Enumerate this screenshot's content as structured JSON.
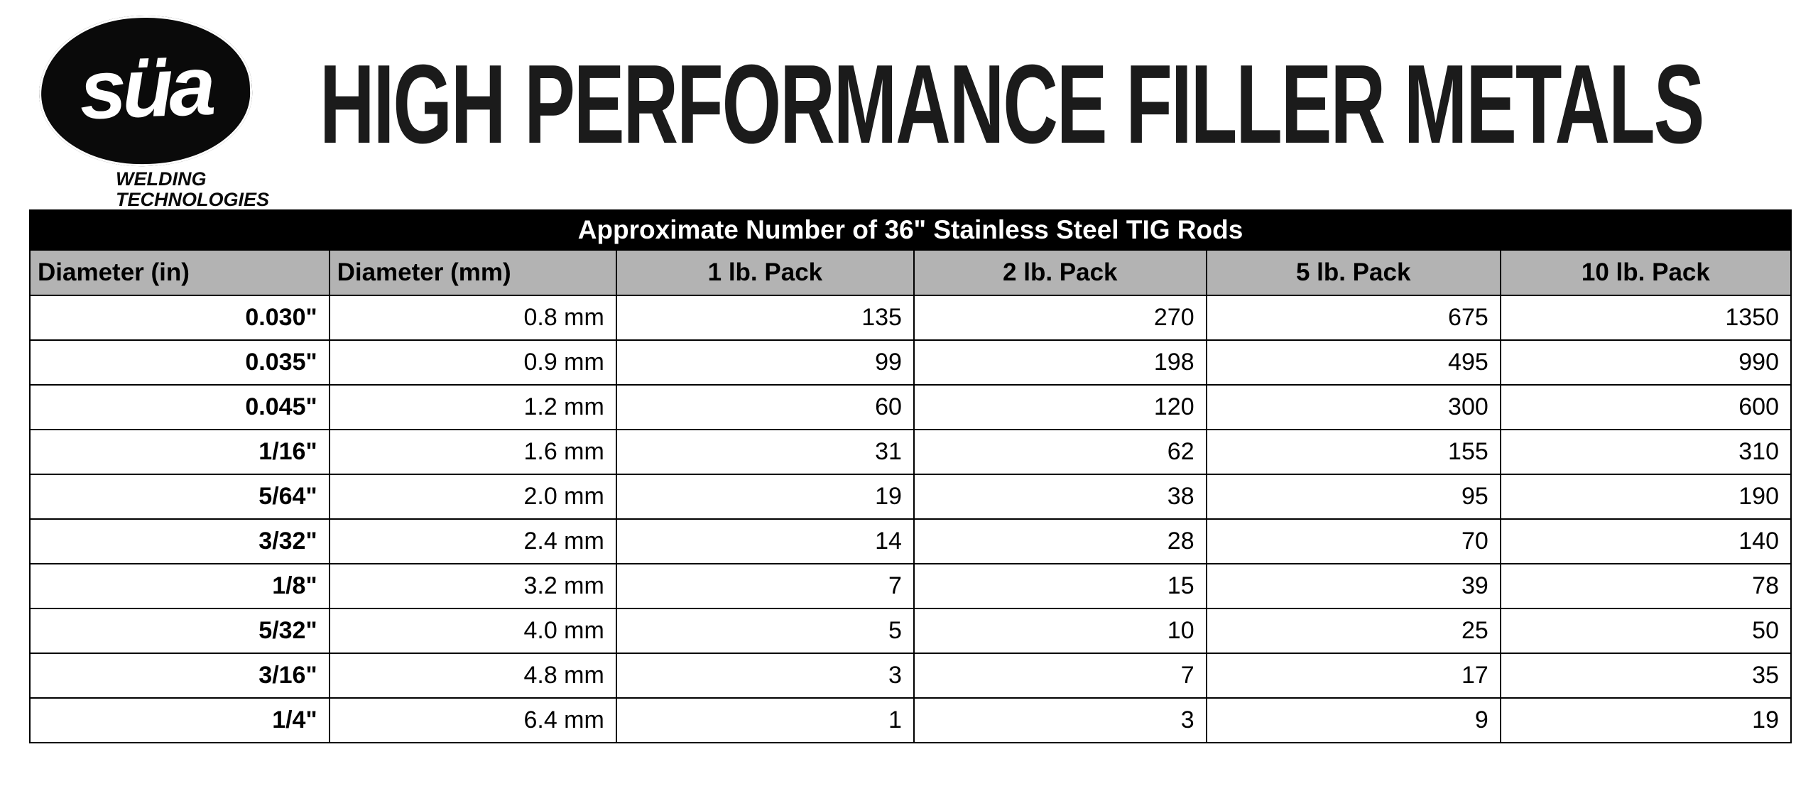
{
  "header": {
    "title": "HIGH PERFORMANCE FILLER METALS",
    "logo": {
      "text": "süa",
      "sub_line1": "WELDING",
      "sub_line2": "TECHNOLOGIES"
    }
  },
  "table": {
    "caption": "Approximate Number of 36\" Stainless Steel TIG Rods",
    "columns": [
      "Diameter (in)",
      "Diameter (mm)",
      "1 lb. Pack",
      "2 lb. Pack",
      "5 lb. Pack",
      "10 lb. Pack"
    ],
    "rows": [
      [
        "0.030\"",
        "0.8 mm",
        "135",
        "270",
        "675",
        "1350"
      ],
      [
        "0.035\"",
        "0.9 mm",
        "99",
        "198",
        "495",
        "990"
      ],
      [
        "0.045\"",
        "1.2 mm",
        "60",
        "120",
        "300",
        "600"
      ],
      [
        "1/16\"",
        "1.6 mm",
        "31",
        "62",
        "155",
        "310"
      ],
      [
        "5/64\"",
        "2.0 mm",
        "19",
        "38",
        "95",
        "190"
      ],
      [
        "3/32\"",
        "2.4 mm",
        "14",
        "28",
        "70",
        "140"
      ],
      [
        "1/8\"",
        "3.2 mm",
        "7",
        "15",
        "39",
        "78"
      ],
      [
        "5/32\"",
        "4.0 mm",
        "5",
        "10",
        "25",
        "50"
      ],
      [
        "3/16\"",
        "4.8 mm",
        "3",
        "7",
        "17",
        "35"
      ],
      [
        "1/4\"",
        "6.4 mm",
        "1",
        "3",
        "9",
        "19"
      ]
    ]
  },
  "colors": {
    "caption_bg": "#000000",
    "caption_text": "#ffffff",
    "column_header_bg": "#b3b3b3",
    "border": "#000000",
    "page_bg": "#ffffff"
  }
}
